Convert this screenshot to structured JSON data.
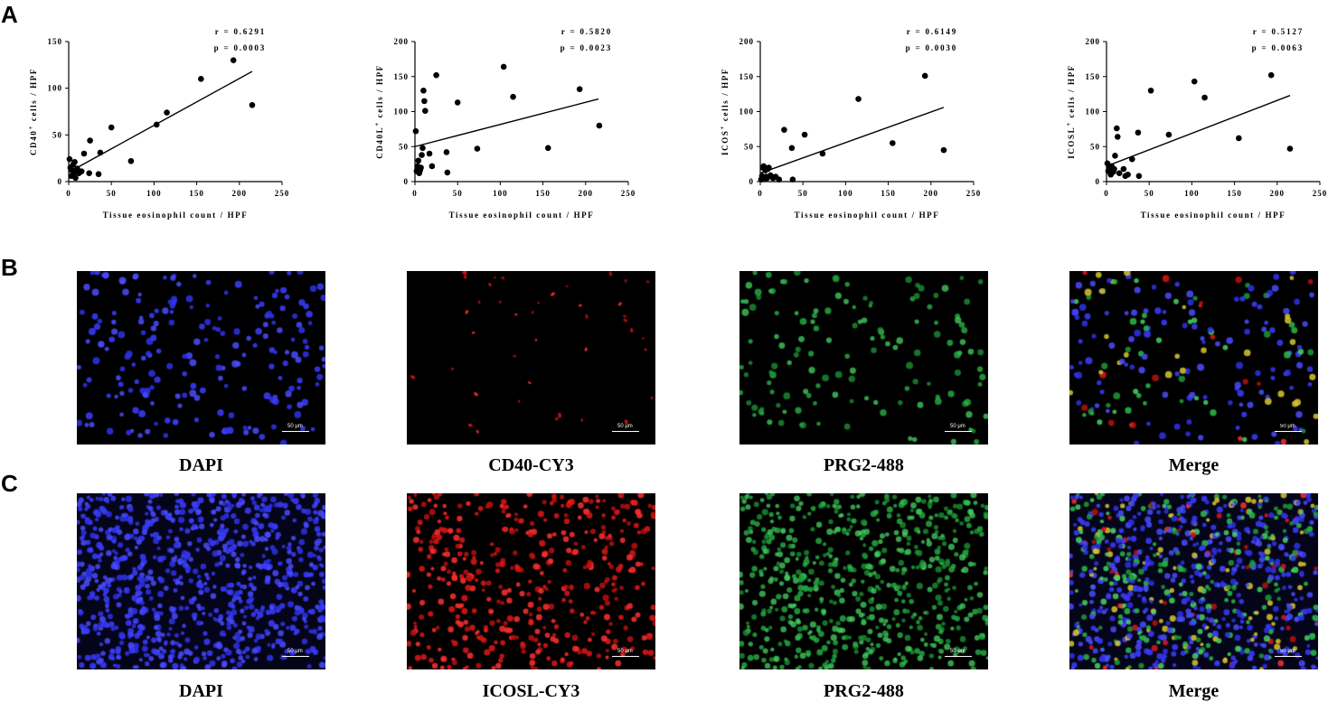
{
  "panels": {
    "a": "A",
    "b": "B",
    "c": "C"
  },
  "chart_data": [
    {
      "type": "scatter",
      "ylabel": "CD40",
      "ylabel_sup": "+",
      "ylabel_suffix": " cells / HPF",
      "xlabel": "Tissue eosinophil count / HPF",
      "xlim": [
        0,
        250
      ],
      "ylim": [
        0,
        150
      ],
      "xticks": [
        0,
        50,
        100,
        150,
        200,
        250
      ],
      "yticks": [
        0,
        50,
        100,
        150
      ],
      "stats": {
        "r": "r = 0.6291",
        "p": "p = 0.0003"
      },
      "fit": {
        "x0": 0,
        "y0": 10,
        "x1": 215,
        "y1": 118
      },
      "x": [
        1,
        2,
        3,
        4,
        5,
        6,
        7,
        8,
        9,
        10,
        12,
        15,
        18,
        24,
        25,
        35,
        37,
        50,
        73,
        103,
        115,
        155,
        193,
        215
      ],
      "y": [
        24,
        15,
        6,
        12,
        18,
        9,
        21,
        4,
        11,
        14,
        9,
        11,
        30,
        9,
        44,
        8,
        31,
        58,
        22,
        61,
        74,
        110,
        130,
        82
      ]
    },
    {
      "type": "scatter",
      "ylabel": "CD40L",
      "ylabel_sup": "+",
      "ylabel_suffix": " cells / HPF",
      "xlabel": "Tissue eosinophil count / HPF",
      "xlim": [
        0,
        250
      ],
      "ylim": [
        0,
        200
      ],
      "xticks": [
        0,
        50,
        100,
        150,
        200,
        250
      ],
      "yticks": [
        0,
        50,
        100,
        150,
        200
      ],
      "stats": {
        "r": "r = 0.5820",
        "p": "p = 0.0023"
      },
      "fit": {
        "x0": 0,
        "y0": 50,
        "x1": 215,
        "y1": 118
      },
      "x": [
        1,
        2,
        3,
        4,
        5,
        6,
        7,
        8,
        9,
        10,
        11,
        12,
        17,
        20,
        25,
        37,
        38,
        50,
        73,
        104,
        115,
        156,
        193,
        216
      ],
      "y": [
        72,
        15,
        22,
        30,
        12,
        16,
        20,
        38,
        48,
        130,
        115,
        101,
        40,
        22,
        152,
        42,
        13,
        113,
        47,
        164,
        121,
        48,
        132,
        80
      ]
    },
    {
      "type": "scatter",
      "ylabel": "ICOS",
      "ylabel_sup": "+",
      "ylabel_suffix": " cells / HPF",
      "xlabel": "Tissue eosinophil count / HPF",
      "xlim": [
        0,
        250
      ],
      "ylim": [
        0,
        200
      ],
      "xticks": [
        0,
        50,
        100,
        150,
        200,
        250
      ],
      "yticks": [
        0,
        50,
        100,
        150,
        200
      ],
      "stats": {
        "r": "r = 0.6149",
        "p": "p = 0.0030"
      },
      "fit": {
        "x0": 0,
        "y0": 12,
        "x1": 215,
        "y1": 106
      },
      "x": [
        1,
        2,
        3,
        4,
        5,
        6,
        7,
        8,
        9,
        10,
        12,
        15,
        18,
        22,
        28,
        37,
        38,
        52,
        73,
        115,
        155,
        193,
        215
      ],
      "y": [
        3,
        8,
        20,
        22,
        4,
        16,
        7,
        5,
        18,
        20,
        9,
        5,
        7,
        3,
        74,
        48,
        3,
        67,
        40,
        118,
        55,
        151,
        45
      ]
    },
    {
      "type": "scatter",
      "ylabel": "ICOSL",
      "ylabel_sup": "+",
      "ylabel_suffix": " cells / HPF",
      "xlabel": "Tissue eosinophil count / HPF",
      "xlim": [
        0,
        250
      ],
      "ylim": [
        0,
        200
      ],
      "xticks": [
        0,
        50,
        100,
        150,
        200,
        250
      ],
      "yticks": [
        0,
        50,
        100,
        150,
        200
      ],
      "stats": {
        "r": "r = 0.5127",
        "p": "p = 0.0063"
      },
      "fit": {
        "x0": 0,
        "y0": 22,
        "x1": 215,
        "y1": 123
      },
      "x": [
        1,
        2,
        3,
        4,
        5,
        6,
        8,
        9,
        10,
        12,
        13,
        15,
        20,
        22,
        25,
        30,
        37,
        38,
        52,
        73,
        103,
        115,
        155,
        193,
        215
      ],
      "y": [
        26,
        15,
        20,
        14,
        10,
        22,
        14,
        18,
        37,
        76,
        64,
        12,
        18,
        8,
        10,
        32,
        70,
        8,
        130,
        67,
        143,
        120,
        62,
        152,
        47
      ]
    }
  ],
  "row_b": {
    "images": [
      {
        "caption": "DAPI",
        "scale": "50 μm",
        "stain": "blue",
        "color": "#3a3cff"
      },
      {
        "caption": "CD40-CY3",
        "scale": "50 μm",
        "stain": "red",
        "color": "#e02020"
      },
      {
        "caption": "PRG2-488",
        "scale": "50 μm",
        "stain": "green",
        "color": "#2fb84a"
      },
      {
        "caption": "Merge",
        "scale": "50 μm",
        "stain": "merge",
        "color": "#3a3cff"
      }
    ]
  },
  "row_c": {
    "images": [
      {
        "caption": "DAPI",
        "scale": "50 μm",
        "stain": "blue",
        "color": "#3a3cff"
      },
      {
        "caption": "ICOSL-CY3",
        "scale": "50 μm",
        "stain": "red",
        "color": "#e02020"
      },
      {
        "caption": "PRG2-488",
        "scale": "50 μm",
        "stain": "green",
        "color": "#2fb84a"
      },
      {
        "caption": "Merge",
        "scale": "50 μm",
        "stain": "merge",
        "color": "#3a3cff"
      }
    ]
  }
}
